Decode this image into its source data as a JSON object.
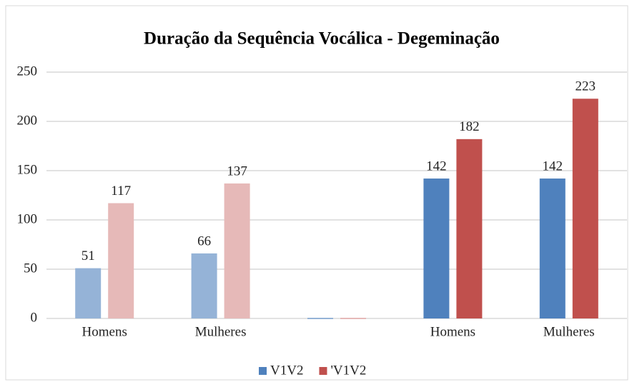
{
  "chart_data": {
    "type": "bar",
    "title": "Duração da Sequência Vocálica - Degeminação",
    "categories": [
      "Homens",
      "Mulheres",
      null,
      "Homens",
      "Mulheres"
    ],
    "series": [
      {
        "name": "V1V2",
        "color": "#4f81bd",
        "colors": [
          "#95b3d7",
          "#95b3d7",
          "#95b3d7",
          "#4f81bd",
          "#4f81bd"
        ],
        "values": [
          51,
          66,
          0,
          142,
          142
        ],
        "value_labels": [
          "51",
          "66",
          null,
          "142",
          "142"
        ]
      },
      {
        "name": "'V1V2",
        "color": "#c0504d",
        "colors": [
          "#e6b9b8",
          "#e6b9b8",
          "#e6b9b8",
          "#c0504d",
          "#c0504d"
        ],
        "values": [
          117,
          137,
          0,
          182,
          223
        ],
        "value_labels": [
          "117",
          "137",
          null,
          "182",
          "223"
        ]
      }
    ],
    "ylim": [
      0,
      250
    ],
    "yticks": [
      0,
      50,
      100,
      150,
      200,
      250
    ],
    "grid": true,
    "legend": "bottom"
  }
}
